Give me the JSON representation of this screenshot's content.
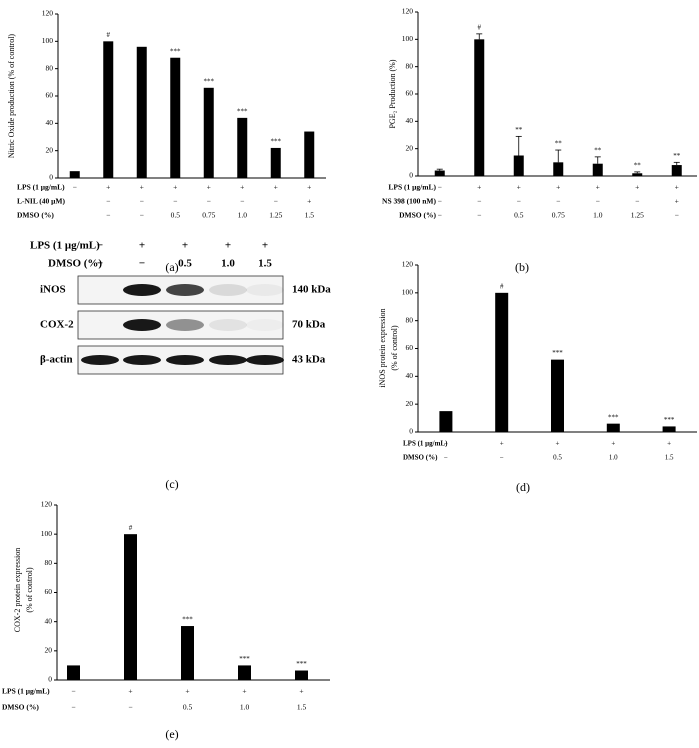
{
  "chart_data": [
    {
      "type": "bar",
      "panel_label": "(a)",
      "ylabel": [
        "Nitric Oxide production (% of control)"
      ],
      "values": [
        5,
        100,
        96,
        88,
        66,
        44,
        22,
        34
      ],
      "annotations": [
        null,
        "#",
        null,
        "***",
        "***",
        "***",
        "***",
        null
      ],
      "conditions": [
        {
          "label": "LPS (1 μg/mL)",
          "values": [
            "−",
            "+",
            "+",
            "+",
            "+",
            "+",
            "+",
            "+"
          ]
        },
        {
          "label": "L-NIL (40 μM)",
          "values": [
            null,
            "−",
            "−",
            "−",
            "−",
            "−",
            "−",
            "+"
          ]
        },
        {
          "label": "DMSO (%)",
          "values": [
            null,
            "−",
            "−",
            "0.5",
            "0.75",
            "1.0",
            "1.25",
            "1.5"
          ]
        }
      ],
      "color": "#000000",
      "ylim": [
        0,
        120
      ],
      "yticks": [
        0,
        20,
        40,
        60,
        80,
        100,
        120
      ]
    },
    {
      "type": "bar",
      "panel_label": "(b)",
      "ylabel": [
        "PGE₂ Production (%)"
      ],
      "values": [
        4,
        100,
        15,
        10,
        9,
        2,
        8
      ],
      "errors": [
        1,
        4,
        14,
        9,
        5,
        1,
        2
      ],
      "annotations": [
        null,
        "#",
        "**",
        "**",
        "**",
        "**",
        "**"
      ],
      "conditions": [
        {
          "label": "LPS (1 μg/mL)",
          "values": [
            "−",
            "+",
            "+",
            "+",
            "+",
            "+",
            "+"
          ]
        },
        {
          "label": "NS 398 (100 nM)",
          "values": [
            "−",
            "−",
            "−",
            "−",
            "−",
            "−",
            "+"
          ]
        },
        {
          "label": "DMSO (%)",
          "values": [
            "−",
            "−",
            "0.5",
            "0.75",
            "1.0",
            "1.25",
            "−"
          ]
        }
      ],
      "color": "#000000",
      "ylim": [
        0,
        120
      ],
      "yticks": [
        0,
        20,
        40,
        60,
        80,
        100,
        120
      ]
    },
    {
      "type": "bar",
      "panel_label": "(d)",
      "ylabel": [
        "iNOS protein expression",
        "(% of control)"
      ],
      "values": [
        15,
        100,
        52,
        6,
        4
      ],
      "annotations": [
        null,
        "#",
        "***",
        "***",
        "***"
      ],
      "conditions": [
        {
          "label": "LPS (1 μg/mL)",
          "values": [
            "−",
            "+",
            "+",
            "+",
            "+"
          ]
        },
        {
          "label": "DMSO (%)",
          "values": [
            "−",
            "−",
            "0.5",
            "1.0",
            "1.5"
          ]
        }
      ],
      "color": "#000000",
      "ylim": [
        0,
        120
      ],
      "yticks": [
        0,
        20,
        40,
        60,
        80,
        100,
        120
      ]
    },
    {
      "type": "bar",
      "panel_label": "(e)",
      "ylabel": [
        "COX-2 protein expression",
        "(% of control)"
      ],
      "values": [
        10,
        100,
        37,
        10,
        6.5
      ],
      "annotations": [
        null,
        "#",
        "***",
        "***",
        "***"
      ],
      "conditions": [
        {
          "label": "LPS (1 μg/mL)",
          "values": [
            "−",
            "+",
            "+",
            "+",
            "+"
          ]
        },
        {
          "label": "DMSO (%)",
          "values": [
            "−",
            "−",
            "0.5",
            "1.0",
            "1.5"
          ]
        }
      ],
      "color": "#000000",
      "ylim": [
        0,
        120
      ],
      "yticks": [
        0,
        20,
        40,
        60,
        80,
        100,
        120
      ]
    }
  ],
  "blot": {
    "panel_label": "(c)",
    "conditions": [
      {
        "label": "LPS (1 μg/mL)",
        "values": [
          "−",
          "+",
          "+",
          "+",
          "+"
        ]
      },
      {
        "label": "DMSO (%)",
        "values": [
          "−",
          "−",
          "0.5",
          "1.0",
          "1.5"
        ]
      }
    ],
    "rows": [
      {
        "label": "iNOS",
        "size": "140 kDa"
      },
      {
        "label": "COX-2",
        "size": "70 kDa"
      },
      {
        "label": "β-actin",
        "size": "43 kDa"
      }
    ]
  }
}
